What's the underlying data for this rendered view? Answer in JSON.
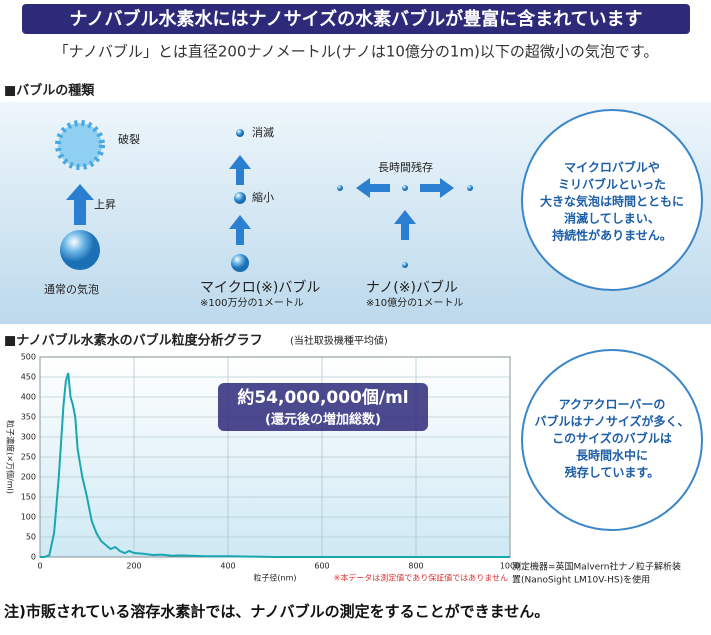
{
  "header": {
    "title": "ナノバブル水素水にはナノサイズの水素バブルが豊富に含まれています",
    "subtitle": "「ナノバブル」とは直径200ナノメートル(ナノは10億分の1m)以下の超微小の気泡です。"
  },
  "bubbles": {
    "title": "■バブルの種類",
    "burst": "破裂",
    "rise": "上昇",
    "normal": "通常の気泡",
    "vanish": "消滅",
    "shrink": "縮小",
    "micro": "マイクロ(※)バブル",
    "micro_note": "※100万分の1メートル",
    "long": "長時間残存",
    "nano": "ナノ(※)バブル",
    "nano_note": "※10億分の1メートル",
    "callout": [
      "マイクロバブルや",
      "ミリバブルといった",
      "大きな気泡は時間とともに",
      "消滅してしまい、",
      "持続性がありません。"
    ]
  },
  "graph": {
    "title": "■ナノバブル水素水のバブル粒度分析グラフ",
    "subtitle": "(当社取扱機種平均値)",
    "callout": [
      "アクアクローバーの",
      "バブルはナノサイズが多く、",
      "このサイズのバブルは",
      "長時間水中に",
      "残存しています。"
    ],
    "instrument": [
      "測定機器=英国Malvern社ナノ粒子解析装",
      "置(NanoSight LM10V-HS)を使用"
    ]
  },
  "chart_data": {
    "type": "line",
    "annotation": "約54,000,000個/ml",
    "annotation_sub": "(還元後の増加総数)",
    "x_label": "粒子径(nm)",
    "y_label": "粒子濃度(×万個/ml)",
    "note": "※本データは測定値であり保証値ではありません",
    "color": "#1aa6b0",
    "x": [
      0,
      10,
      20,
      30,
      40,
      50,
      55,
      60,
      65,
      70,
      75,
      80,
      90,
      100,
      110,
      120,
      130,
      140,
      150,
      160,
      170,
      180,
      190,
      200,
      220,
      240,
      260,
      280,
      300,
      350,
      400,
      450,
      500,
      1000
    ],
    "values": [
      0,
      0,
      5,
      60,
      200,
      380,
      440,
      460,
      400,
      380,
      350,
      270,
      200,
      150,
      90,
      60,
      40,
      30,
      20,
      25,
      15,
      10,
      15,
      10,
      8,
      5,
      6,
      3,
      4,
      2,
      2,
      1,
      0,
      0
    ],
    "xlim": [
      0,
      1000
    ],
    "ylim": [
      0,
      500
    ],
    "xticks": [
      0,
      200,
      400,
      600,
      800,
      1000
    ],
    "yticks": [
      0,
      50,
      100,
      150,
      200,
      250,
      300,
      350,
      400,
      450,
      500
    ],
    "grid": true
  },
  "footer": "注)市販されている溶存水素計では、ナノバブルの測定をすることができません。"
}
